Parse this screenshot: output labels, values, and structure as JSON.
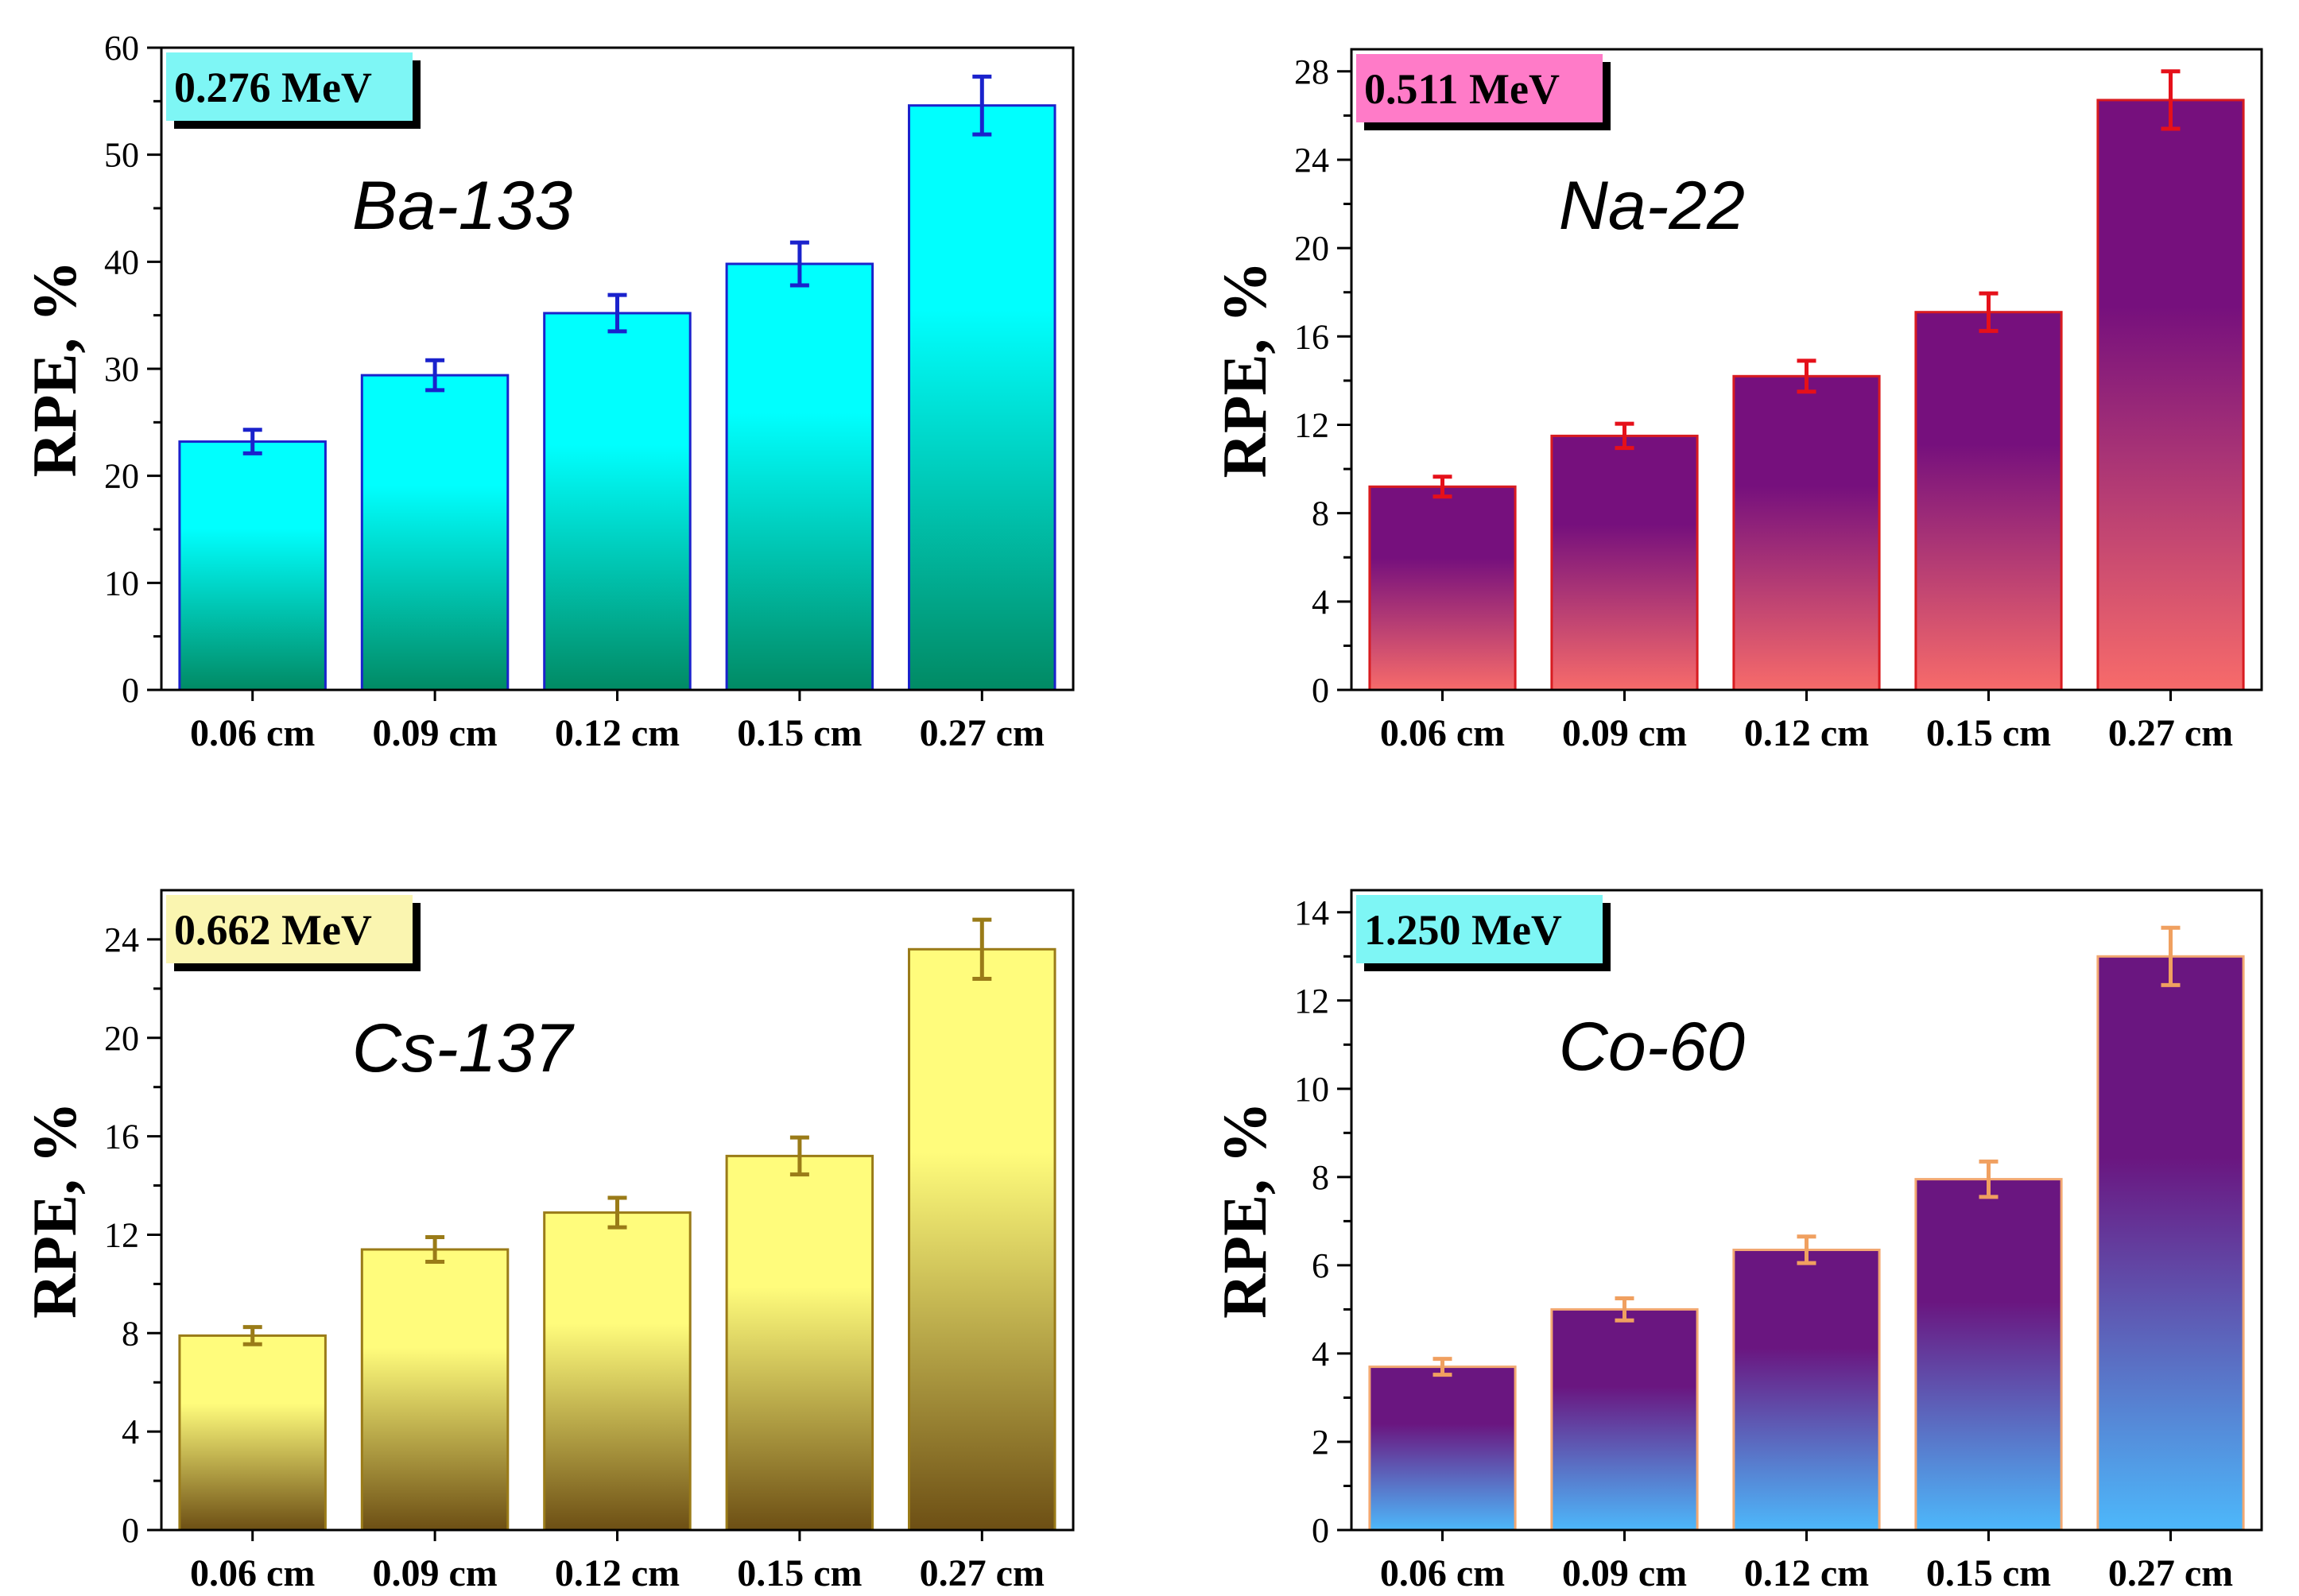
{
  "chart_data": [
    {
      "type": "bar",
      "isotope": "Ba-133",
      "energy": "0.276 MeV",
      "ylabel": "RPE, %",
      "categories": [
        "0.06 cm",
        "0.09 cm",
        "0.12 cm",
        "0.15 cm",
        "0.27 cm"
      ],
      "values": [
        23.2,
        29.4,
        35.2,
        39.8,
        54.6
      ],
      "errors": [
        1.1,
        1.4,
        1.7,
        2.0,
        2.7
      ],
      "ylim": [
        0,
        60
      ],
      "yticks": [
        0,
        10,
        20,
        30,
        40,
        50,
        60
      ],
      "gradient": [
        "#00fffe",
        "#018a64"
      ],
      "bar_border": "#1a22cc",
      "error_color": "#1a22cc",
      "badge_color": "#7ef6f5",
      "grid": false
    },
    {
      "type": "bar",
      "isotope": "Na-22",
      "energy": "0.511 MeV",
      "ylabel": "RPE, %",
      "categories": [
        "0.06 cm",
        "0.09 cm",
        "0.12 cm",
        "0.15 cm",
        "0.27 cm"
      ],
      "values": [
        9.2,
        11.5,
        14.2,
        17.1,
        26.7
      ],
      "errors": [
        0.45,
        0.55,
        0.7,
        0.85,
        1.3
      ],
      "ylim": [
        0,
        29
      ],
      "yticks": [
        0,
        4,
        8,
        12,
        16,
        20,
        24,
        28
      ],
      "gradient": [
        "#76107d",
        "#f76b6a"
      ],
      "bar_border": "#d81b20",
      "error_color": "#e5101a",
      "badge_color": "#ff7bc8",
      "grid": false
    },
    {
      "type": "bar",
      "isotope": "Cs-137",
      "energy": "0.662 MeV",
      "ylabel": "RPE, %",
      "categories": [
        "0.06 cm",
        "0.09 cm",
        "0.12 cm",
        "0.15 cm",
        "0.27 cm"
      ],
      "values": [
        7.9,
        11.4,
        12.9,
        15.2,
        23.6
      ],
      "errors": [
        0.35,
        0.5,
        0.6,
        0.75,
        1.2
      ],
      "ylim": [
        0,
        26
      ],
      "yticks": [
        0,
        4,
        8,
        12,
        16,
        20,
        24
      ],
      "gradient": [
        "#fffc7c",
        "#6d4f14"
      ],
      "bar_border": "#9a7b18",
      "error_color": "#9a7b18",
      "badge_color": "#faf5b0",
      "grid": false
    },
    {
      "type": "bar",
      "isotope": "Co-60",
      "energy": "1.250 MeV",
      "ylabel": "RPE, %",
      "categories": [
        "0.06 cm",
        "0.09 cm",
        "0.12 cm",
        "0.15 cm",
        "0.27 cm"
      ],
      "values": [
        3.7,
        5.0,
        6.35,
        7.95,
        13.0
      ],
      "errors": [
        0.18,
        0.25,
        0.3,
        0.4,
        0.65
      ],
      "ylim": [
        0,
        14.5
      ],
      "yticks": [
        0,
        2,
        4,
        6,
        8,
        10,
        12,
        14
      ],
      "gradient": [
        "#6a1680",
        "#4db8fb"
      ],
      "bar_border": "#f2a872",
      "error_color": "#f0a060",
      "badge_color": "#7ef6f5",
      "grid": false
    }
  ]
}
